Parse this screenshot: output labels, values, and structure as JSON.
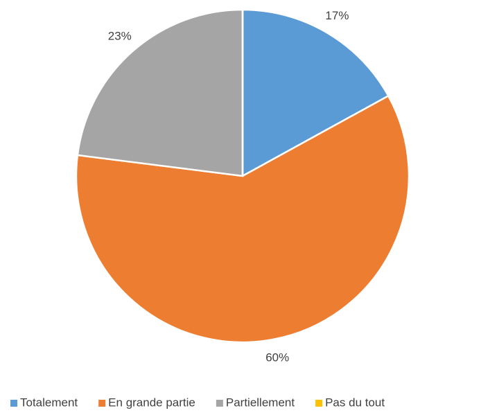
{
  "chart_data": {
    "type": "pie",
    "categories": [
      "Totalement",
      "En grande partie",
      "Partiellement",
      "Pas du tout"
    ],
    "values": [
      17,
      60,
      23,
      0
    ],
    "value_labels": [
      "17%",
      "60%",
      "23%",
      null
    ],
    "colors": [
      "#5b9bd5",
      "#ed7d31",
      "#a5a5a5",
      "#ffc000"
    ],
    "legend": "bottom"
  }
}
